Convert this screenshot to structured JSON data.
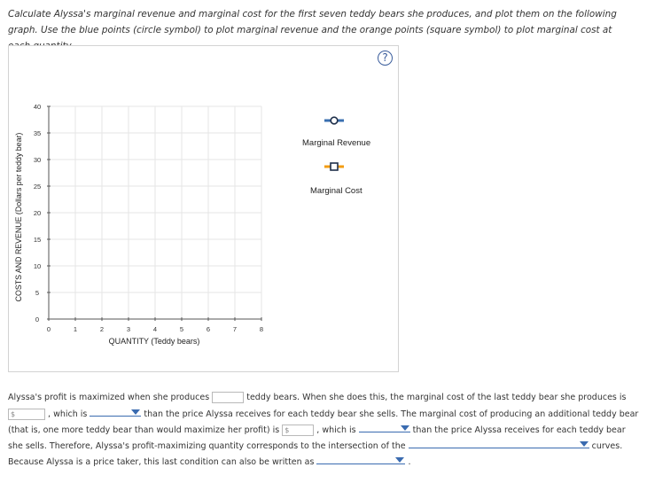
{
  "instructions": {
    "text": "Calculate Alyssa's marginal revenue and marginal cost for the first seven teddy bears she produces, and plot them on the following graph. Use the blue points (circle symbol) to plot marginal revenue and the orange points (square symbol) to plot marginal cost at each quantity."
  },
  "help_button": {
    "label": "?"
  },
  "chart_data": {
    "type": "scatter",
    "title": "",
    "xlabel": "QUANTITY (Teddy bears)",
    "ylabel": "COSTS AND REVENUE (Dollars per teddy bear)",
    "xlim": [
      0,
      8
    ],
    "ylim": [
      0,
      40
    ],
    "x_ticks": [
      0,
      1,
      2,
      3,
      4,
      5,
      6,
      7,
      8
    ],
    "y_ticks": [
      0,
      5,
      10,
      15,
      20,
      25,
      30,
      35,
      40
    ],
    "grid": true,
    "series": [
      {
        "name": "Marginal Revenue",
        "marker": "circle",
        "color": "#3a6fb0",
        "values": []
      },
      {
        "name": "Marginal Cost",
        "marker": "square",
        "color": "#f39c12",
        "values": []
      }
    ],
    "legend_position": "right"
  },
  "legend": {
    "marginal_revenue": "Marginal Revenue",
    "marginal_cost": "Marginal Cost"
  },
  "fill_in": {
    "line1_a": "Alyssa's profit is maximized when she produces",
    "line1_b": "teddy bears. When she does this, the marginal cost of the last teddy bear she produces is",
    "line2_prefix": "$",
    "line2_a": ", which is",
    "line2_b": "than the price Alyssa receives for each teddy bear she sells. The marginal cost of producing an additional teddy bear",
    "line3_a": "(that is, one more teddy bear than would maximize her profit) is",
    "line3_prefix": "$",
    "line3_b": ", which is",
    "line3_c": "than the price Alyssa receives for each teddy bear",
    "line4_a": "she sells. Therefore, Alyssa's profit-maximizing quantity corresponds to the intersection of the",
    "line4_b": "curves.",
    "line5_a": "Because Alyssa is a price taker, this last condition can also be written as",
    "line5_b": "."
  }
}
